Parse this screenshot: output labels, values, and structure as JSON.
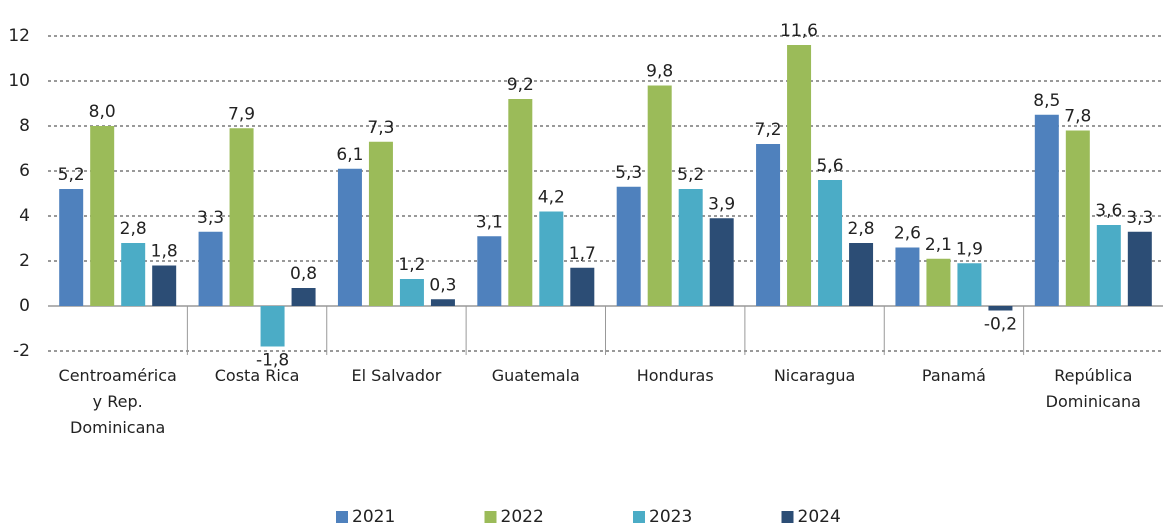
{
  "chart_data": {
    "type": "bar",
    "categories": [
      "Centroamérica y Rep. Dominicana",
      "Costa Rica",
      "El Salvador",
      "Guatemala",
      "Honduras",
      "Nicaragua",
      "Panamá",
      "República Dominicana"
    ],
    "series": [
      {
        "name": "2021",
        "color": "#4f81bd",
        "values": [
          5.2,
          3.3,
          6.1,
          3.1,
          5.3,
          7.2,
          2.6,
          8.5
        ],
        "value_labels": [
          "5,2",
          "3,3",
          "6,1",
          "3,1",
          "5,3",
          "7,2",
          "2,6",
          "8,5"
        ]
      },
      {
        "name": "2022",
        "color": "#9bbb59",
        "values": [
          8.0,
          7.9,
          7.3,
          9.2,
          9.8,
          11.6,
          2.1,
          7.8
        ],
        "value_labels": [
          "8,0",
          "7,9",
          "7,3",
          "9,2",
          "9,8",
          "11,6",
          "2,1",
          "7,8"
        ]
      },
      {
        "name": "2023",
        "color": "#4bacc6",
        "values": [
          2.8,
          -1.8,
          1.2,
          4.2,
          5.2,
          5.6,
          1.9,
          3.6
        ],
        "value_labels": [
          "2,8",
          "-1,8",
          "1,2",
          "4,2",
          "5,2",
          "5,6",
          "1,9",
          "3,6"
        ]
      },
      {
        "name": "2024",
        "color": "#2c4d75",
        "values": [
          1.8,
          0.8,
          0.3,
          1.7,
          3.9,
          2.8,
          -0.2,
          3.3
        ],
        "value_labels": [
          "1,8",
          "0,8",
          "0,3",
          "1,7",
          "3,9",
          "2,8",
          "-0,2",
          "3,3"
        ]
      }
    ],
    "ylim": [
      -2,
      12
    ],
    "yticks": [
      -2,
      0,
      2,
      4,
      6,
      8,
      10,
      12
    ],
    "grid": true,
    "legend": "bottom"
  }
}
